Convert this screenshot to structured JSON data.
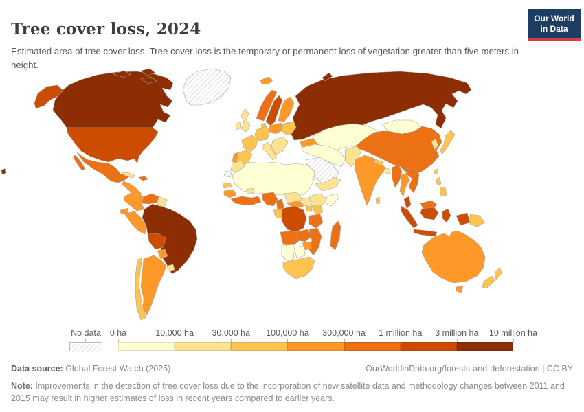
{
  "header": {
    "title": "Tree cover loss, 2024",
    "subtitle": "Estimated area of tree cover loss. Tree cover loss is the temporary or permanent loss of vegetation greater than five meters in height.",
    "logo": {
      "line1": "Our World",
      "line2": "in Data",
      "bg": "#1d3d63",
      "accent": "#d93a4a"
    }
  },
  "legend": {
    "no_data_label": "No data"
  },
  "chart_data": {
    "type": "heatmap",
    "subtype": "world-choropleth",
    "title": "Tree cover loss, 2024",
    "unit": "ha",
    "bins": [
      "0 ha",
      "10,000 ha",
      "30,000 ha",
      "100,000 ha",
      "300,000 ha",
      "1 million ha",
      "3 million ha",
      "10 million ha"
    ],
    "bin_ranges": [
      "0–10,000 ha",
      "10,000–30,000 ha",
      "30,000–100,000 ha",
      "100,000–300,000 ha",
      "300,000–1 million ha",
      "1–3 million ha",
      "3–10 million ha"
    ],
    "bin_colors": [
      "#FFFFD4",
      "#FEE391",
      "#FEC44F",
      "#FE9929",
      "#EC7014",
      "#CC4C02",
      "#8C2D04"
    ],
    "no_data_color": "hatch",
    "legend_position": "bottom",
    "regions": {
      "greenland": -1,
      "western-sahara": -1,
      "saudi-arabia": -1,
      "russia": 6,
      "novaya-zemlya": 6,
      "chukotka": 6,
      "canada": 6,
      "brazil": 6,
      "alaska": 5,
      "usa": 5,
      "bolivia": 5,
      "sweden": 5,
      "drc": 5,
      "malaysia-peninsula": 5,
      "sumatra": 5,
      "borneo-indonesia": 5,
      "java": 5,
      "sulawesi": 5,
      "west-papua": 5,
      "mexico": 4,
      "hispaniola": 4,
      "venezuela": 4,
      "china": 4,
      "myanmar": 4,
      "laos-vietnam": 4,
      "borneo-malaysia": 4,
      "nigeria": 4,
      "cameroon": 4,
      "west-africa-coast": 4,
      "tanzania": 4,
      "angola": 4,
      "zambia": 4,
      "mozambique": 4,
      "madagascar": 4,
      "norway": 4,
      "colombia": 3,
      "peru": 3,
      "ecuador": 3,
      "central-america": 3,
      "argentina": 3,
      "paraguay": 3,
      "guinea": 3,
      "central-african-republic": 3,
      "zimbabwe": 3,
      "india": 3,
      "thailand": 3,
      "australia": 3,
      "tasmania": 3,
      "poland": 3,
      "turkey": 3,
      "iceland": 3,
      "portugal": 3,
      "finland": 3,
      "chile": 2,
      "japan": 2,
      "philippines": 2,
      "taiwan": 2,
      "new-zealand": 2,
      "sri-lanka": 2,
      "nepal": 2,
      "kenya": 2,
      "uganda": 2,
      "gabon-congo": 2,
      "senegal": 2,
      "south-africa": 2,
      "france": 2,
      "iberia": 2,
      "germany": 2,
      "baltics": 2,
      "ukraine": 2,
      "papua-new-guinea": 2,
      "denmark": 2,
      "uk": 1,
      "ireland": 1,
      "italy": 1,
      "balkans": 1,
      "cuba": 1,
      "guyanas": 1,
      "uruguay": 1,
      "morocco": 1,
      "burkina-faso": 1,
      "chad-sudan": 1,
      "ethiopia": 1,
      "south-sudan": 1,
      "afghanistan-pakistan": 1,
      "bangladesh": 1,
      "korea": 1,
      "yemen-oman": 1,
      "sahara": 0,
      "somalia": 0,
      "namibia": 0,
      "botswana": 0,
      "kazakhstan-central-asia": 0,
      "middle-east": 0,
      "mongolia": 0
    }
  },
  "footer": {
    "source_label": "Data source:",
    "source_value": " Global Forest Watch (2025)",
    "link": "OurWorldinData.org/forests-and-deforestation | CC BY",
    "note_label": "Note:",
    "note_text": " Improvements in the detection of tree cover loss due to the incorporation of new satellite data and methodology changes between 2011 and 2015 may result in higher estimates of loss in recent years compared to earlier years."
  }
}
